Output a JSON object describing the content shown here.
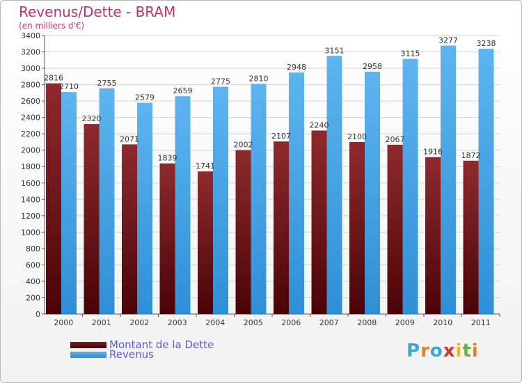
{
  "chart_data": {
    "type": "bar",
    "title": "Revenus/Dette - BRAM",
    "subtitle": "(en milliers d'€)",
    "categories": [
      "2000",
      "2001",
      "2002",
      "2003",
      "2004",
      "2005",
      "2006",
      "2007",
      "2008",
      "2009",
      "2010",
      "2011"
    ],
    "series": [
      {
        "name": "Montant de la Dette",
        "values": [
          2816,
          2320,
          2071,
          1839,
          1741,
          2002,
          2107,
          2240,
          2100,
          2067,
          1916,
          1872
        ],
        "color": "#6b0f12",
        "labels": [
          "2816",
          "2320",
          "2071",
          "1839",
          "1741",
          "2002",
          "2107",
          "2240",
          "2100",
          "2067",
          "1916",
          "1872"
        ]
      },
      {
        "name": "Revenus",
        "values": [
          2710,
          2755,
          2579,
          2659,
          2775,
          2810,
          2948,
          3151,
          2958,
          3115,
          3277,
          3238
        ],
        "color": "#4aa3e6",
        "labels": [
          "2710",
          "2755",
          "2579",
          "2659",
          "2775",
          "2810",
          "2948",
          "3151",
          "2958",
          "3115",
          "3277",
          "3238"
        ]
      }
    ],
    "ylim": [
      0,
      3400
    ],
    "yticks": [
      0,
      200,
      400,
      600,
      800,
      1000,
      1200,
      1400,
      1600,
      1800,
      2000,
      2200,
      2400,
      2600,
      2800,
      3000,
      3200,
      3400
    ],
    "grid": true,
    "legend": "bottom-left"
  },
  "logo": {
    "text": "Proxiti",
    "letters": [
      "P",
      "r",
      "o",
      "x",
      "i",
      "t",
      "i"
    ],
    "colors": [
      "#3aa7d6",
      "#e0802a",
      "#3aa7d6",
      "#d8342a",
      "#e8b920",
      "#6cb33e",
      "#e0802a"
    ]
  }
}
